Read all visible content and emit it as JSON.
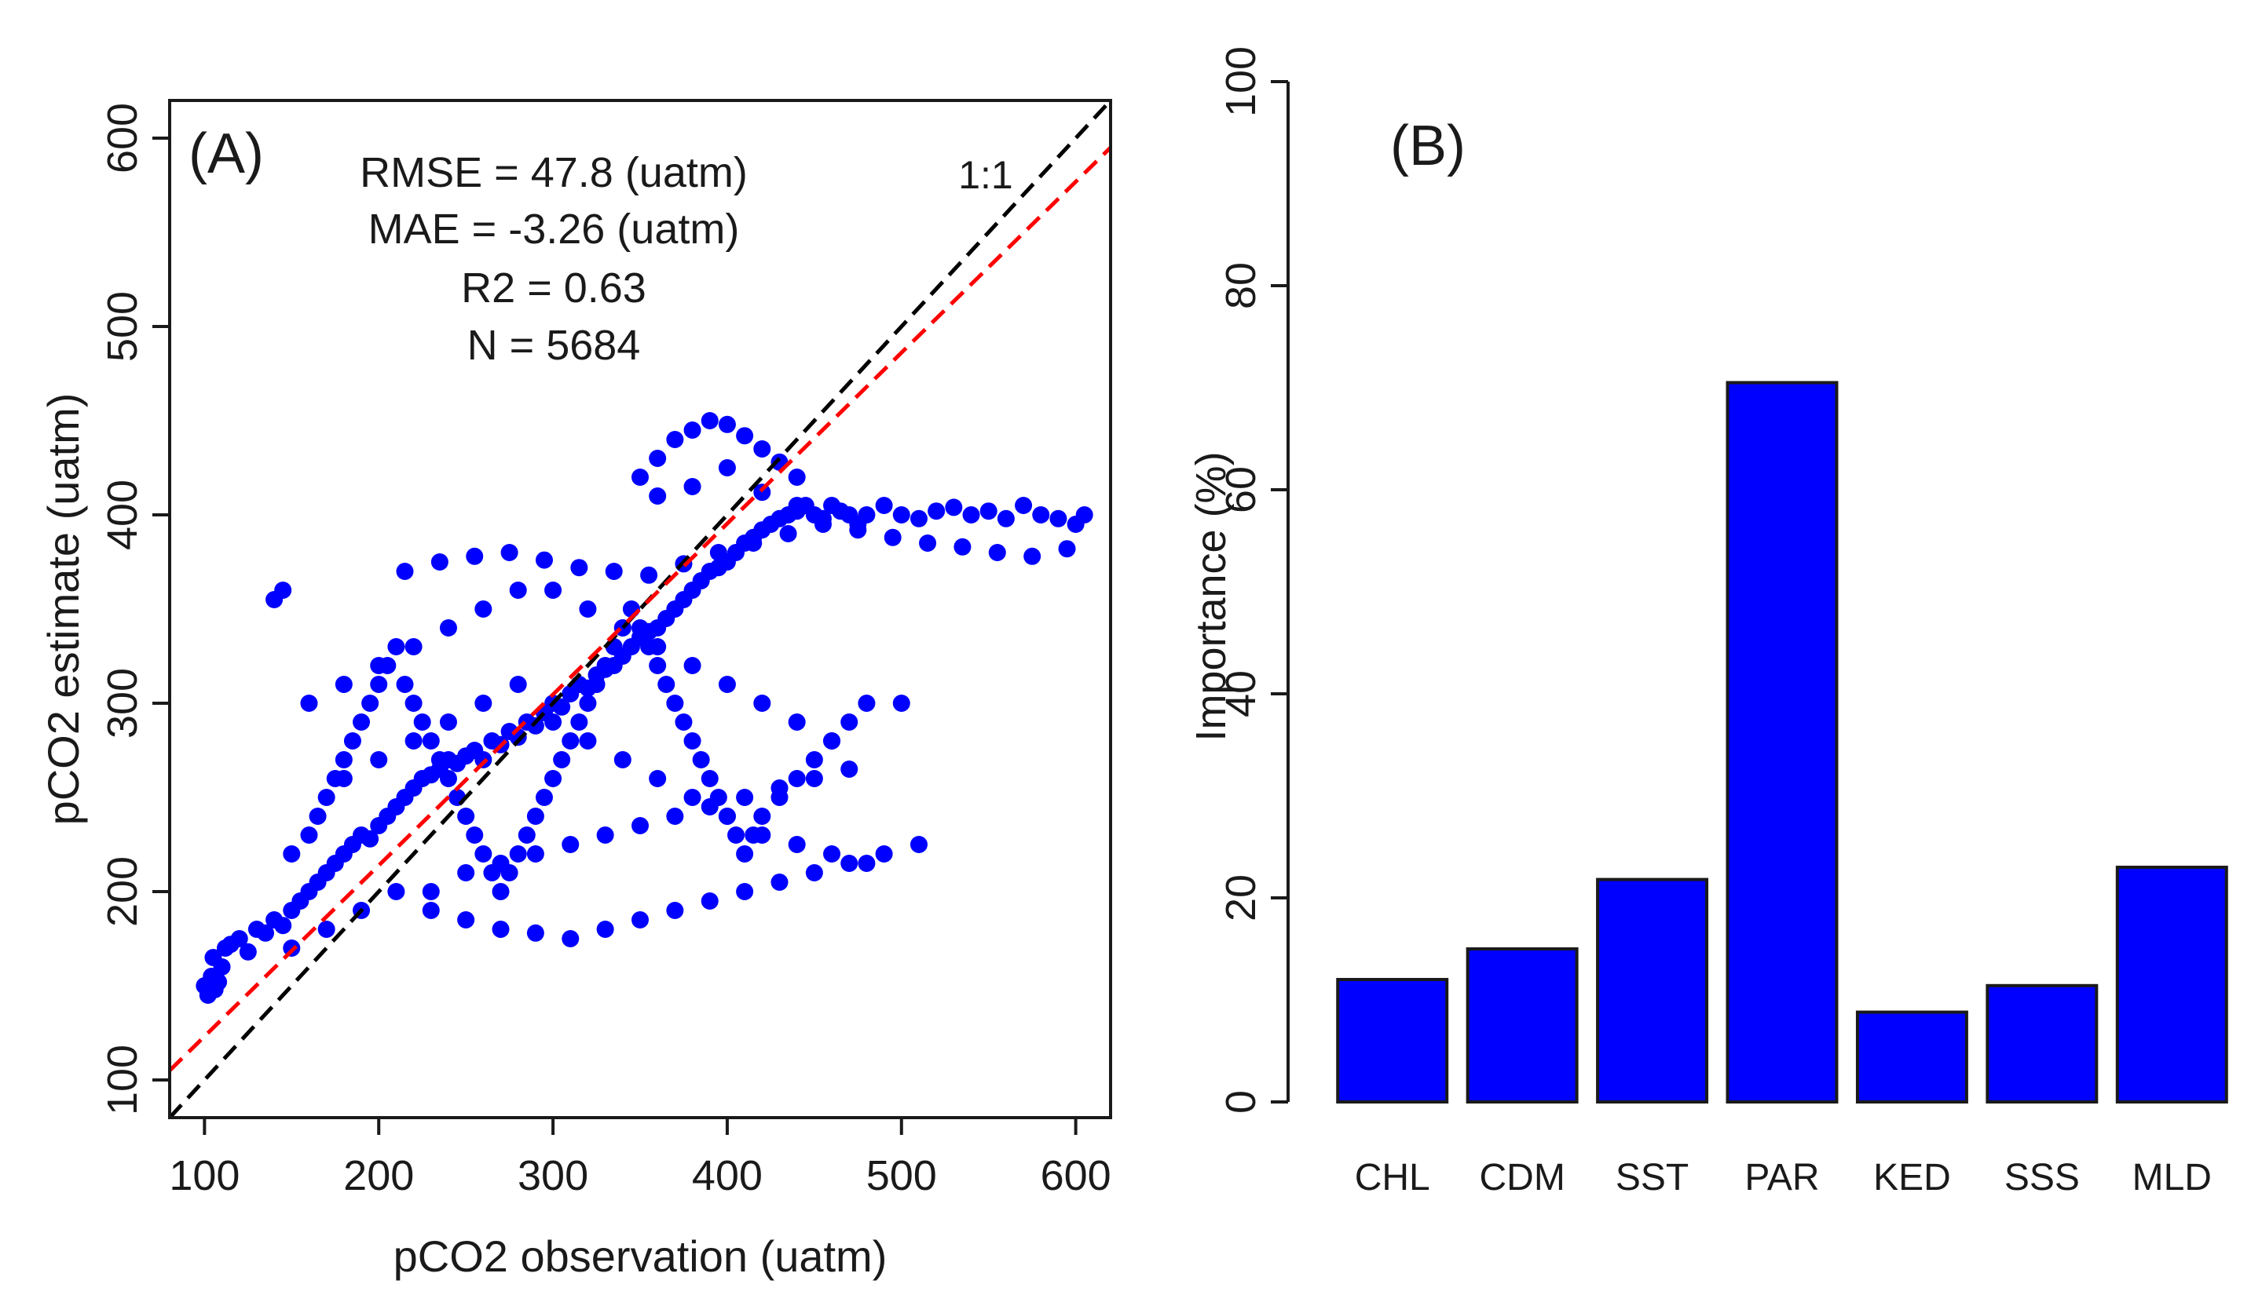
{
  "chart_data": [
    {
      "panel_label": "(A)",
      "type": "scatter",
      "title": "",
      "xlabel": "pCO2 observation (uatm)",
      "ylabel": "pCO2 estimate (uatm)",
      "xlim": [
        80,
        620
      ],
      "ylim": [
        80,
        620
      ],
      "xticks": [
        100,
        200,
        300,
        400,
        500,
        600
      ],
      "yticks": [
        100,
        200,
        300,
        400,
        500,
        600
      ],
      "grid": false,
      "point_color": "#0000ff",
      "stats": [
        "RMSE = 47.8 (uatm)",
        "MAE = -3.26 (uatm)",
        "R2 = 0.63",
        "N = 5684"
      ],
      "lines": [
        {
          "name": "1:1",
          "label": "1:1",
          "color": "#000000",
          "style": "dashed",
          "x": [
            80,
            620
          ],
          "y": [
            80,
            620
          ]
        },
        {
          "name": "fit",
          "label": "",
          "color": "#ff0000",
          "style": "dashed",
          "x": [
            80,
            620
          ],
          "y": [
            105,
            595
          ]
        }
      ],
      "series": [
        {
          "name": "observations",
          "x": [
            100,
            102,
            104,
            106,
            108,
            110,
            105,
            112,
            115,
            120,
            125,
            130,
            135,
            140,
            145,
            150,
            155,
            160,
            165,
            170,
            175,
            180,
            185,
            190,
            195,
            200,
            205,
            210,
            215,
            220,
            225,
            230,
            235,
            240,
            245,
            250,
            255,
            260,
            265,
            270,
            275,
            280,
            285,
            290,
            295,
            300,
            305,
            310,
            315,
            320,
            325,
            330,
            335,
            340,
            345,
            350,
            355,
            360,
            365,
            370,
            375,
            380,
            385,
            390,
            395,
            400,
            405,
            410,
            415,
            420,
            425,
            430,
            435,
            440,
            445,
            450,
            455,
            460,
            465,
            470,
            475,
            480,
            490,
            500,
            510,
            520,
            530,
            540,
            550,
            560,
            570,
            580,
            590,
            600,
            605,
            140,
            145,
            150,
            160,
            165,
            170,
            175,
            180,
            185,
            190,
            195,
            200,
            205,
            210,
            215,
            220,
            225,
            230,
            235,
            240,
            245,
            250,
            255,
            260,
            265,
            270,
            275,
            280,
            285,
            290,
            295,
            300,
            305,
            310,
            315,
            320,
            325,
            330,
            335,
            340,
            345,
            350,
            355,
            360,
            365,
            370,
            375,
            380,
            385,
            390,
            395,
            400,
            405,
            410,
            415,
            420,
            430,
            440,
            450,
            460,
            470,
            480,
            500,
            150,
            170,
            190,
            210,
            230,
            250,
            270,
            290,
            310,
            330,
            350,
            370,
            390,
            410,
            430,
            450,
            470,
            160,
            180,
            200,
            220,
            240,
            260,
            280,
            300,
            320,
            340,
            360,
            380,
            400,
            420,
            440,
            460,
            215,
            235,
            255,
            275,
            295,
            315,
            335,
            355,
            375,
            395,
            415,
            435,
            455,
            475,
            495,
            515,
            535,
            555,
            575,
            595,
            350,
            360,
            370,
            380,
            390,
            400,
            410,
            420,
            430,
            440,
            360,
            380,
            400,
            420,
            440,
            180,
            200,
            220,
            240,
            260,
            280,
            300,
            320,
            340,
            360,
            380,
            400,
            420,
            440,
            460,
            480,
            230,
            250,
            270,
            290,
            310,
            330,
            350,
            370,
            390,
            410,
            430,
            450,
            470,
            490,
            510
          ],
          "y": [
            150,
            145,
            155,
            148,
            152,
            160,
            165,
            170,
            172,
            175,
            168,
            180,
            178,
            185,
            182,
            190,
            195,
            200,
            205,
            210,
            215,
            220,
            225,
            230,
            228,
            235,
            240,
            245,
            250,
            255,
            260,
            262,
            265,
            270,
            268,
            272,
            275,
            270,
            280,
            278,
            285,
            282,
            290,
            288,
            295,
            300,
            298,
            305,
            310,
            308,
            315,
            318,
            320,
            325,
            330,
            335,
            338,
            340,
            345,
            350,
            355,
            360,
            365,
            370,
            372,
            375,
            380,
            385,
            388,
            392,
            395,
            398,
            400,
            402,
            405,
            400,
            398,
            405,
            402,
            400,
            395,
            400,
            405,
            400,
            398,
            402,
            404,
            400,
            402,
            398,
            405,
            400,
            398,
            395,
            400,
            355,
            360,
            220,
            230,
            240,
            250,
            260,
            270,
            280,
            290,
            300,
            310,
            320,
            330,
            310,
            300,
            290,
            280,
            270,
            260,
            250,
            240,
            230,
            220,
            210,
            200,
            210,
            220,
            230,
            240,
            250,
            260,
            270,
            280,
            290,
            300,
            310,
            320,
            330,
            340,
            350,
            340,
            330,
            320,
            310,
            300,
            290,
            280,
            270,
            260,
            250,
            240,
            230,
            220,
            230,
            240,
            250,
            260,
            270,
            280,
            290,
            300,
            300,
            170,
            180,
            190,
            200,
            200,
            210,
            215,
            220,
            225,
            230,
            235,
            240,
            245,
            250,
            255,
            260,
            265,
            300,
            310,
            320,
            330,
            340,
            350,
            360,
            360,
            350,
            340,
            330,
            320,
            310,
            300,
            290,
            280,
            370,
            375,
            378,
            380,
            376,
            372,
            370,
            368,
            374,
            380,
            385,
            390,
            395,
            392,
            388,
            385,
            383,
            380,
            378,
            382,
            420,
            430,
            440,
            445,
            450,
            448,
            442,
            435,
            428,
            420,
            410,
            415,
            425,
            412,
            405,
            260,
            270,
            280,
            290,
            300,
            310,
            290,
            280,
            270,
            260,
            250,
            240,
            230,
            225,
            220,
            215,
            190,
            185,
            180,
            178,
            175,
            180,
            185,
            190,
            195,
            200,
            205,
            210,
            215,
            220,
            225
          ]
        }
      ]
    },
    {
      "panel_label": "(B)",
      "type": "bar",
      "title": "",
      "xlabel": "",
      "ylabel": "Importance (%)",
      "categories": [
        "CHL",
        "CDM",
        "SST",
        "PAR",
        "KED",
        "SSS",
        "MLD"
      ],
      "values": [
        12,
        15,
        21.8,
        70.5,
        8.8,
        11.4,
        23
      ],
      "ylim": [
        0,
        100
      ],
      "yticks": [
        0,
        20,
        40,
        60,
        80,
        100
      ],
      "bar_color": "#0000ff",
      "grid": false
    }
  ]
}
